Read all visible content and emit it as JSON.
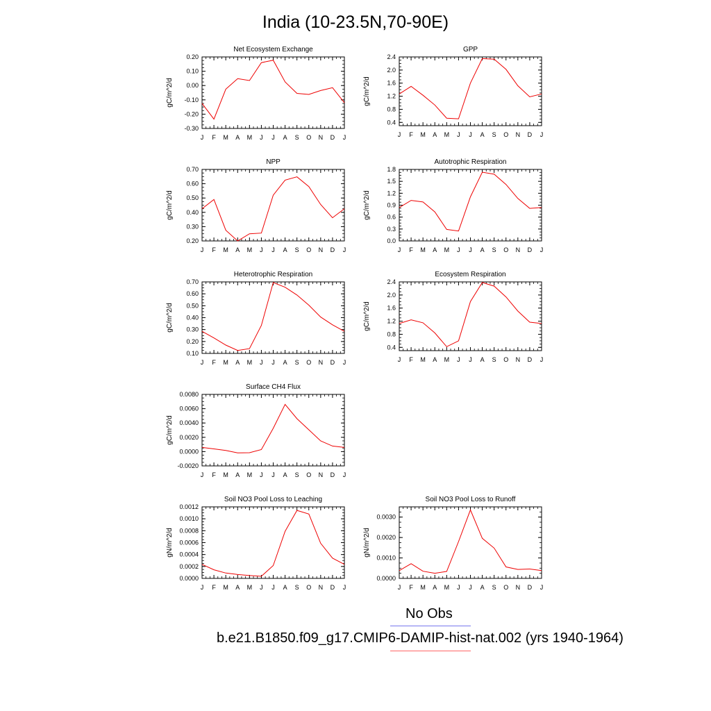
{
  "page": {
    "title": "India (10-23.5N,70-90E)"
  },
  "legend": {
    "obs_label": "No Obs",
    "obs_color": "#7777ee",
    "model_label": "b.e21.B1850.f09_g17.CMIP6-DAMIP-hist-nat.002 (yrs 1940-1964)",
    "model_color": "#ff6666"
  },
  "line_color": "#ee0000",
  "chart_data": [
    {
      "type": "line",
      "title": "Net Ecosystem Exchange",
      "ylabel": "gC/m^2/d",
      "x": [
        "J",
        "F",
        "M",
        "A",
        "M",
        "J",
        "J",
        "A",
        "S",
        "O",
        "N",
        "D",
        "J"
      ],
      "ylim": [
        -0.3,
        0.2
      ],
      "yticks": [
        "0.20",
        "0.10",
        "0.00",
        "-0.10",
        "-0.20",
        "-0.30"
      ],
      "ytick_values": [
        0.2,
        0.1,
        0.0,
        -0.1,
        -0.2,
        -0.3
      ],
      "values": [
        -0.125,
        -0.235,
        -0.025,
        0.048,
        0.035,
        0.16,
        0.177,
        0.025,
        -0.055,
        -0.062,
        -0.035,
        -0.015,
        -0.12
      ]
    },
    {
      "type": "line",
      "title": "GPP",
      "ylabel": "gC/m^2/d",
      "x": [
        "J",
        "F",
        "M",
        "A",
        "M",
        "J",
        "J",
        "A",
        "S",
        "O",
        "N",
        "D",
        "J"
      ],
      "ylim": [
        0.3,
        2.4
      ],
      "yticks": [
        "2.4",
        "2.0",
        "1.6",
        "1.2",
        "0.8",
        "0.4"
      ],
      "ytick_values": [
        2.4,
        2.0,
        1.6,
        1.2,
        0.8,
        0.4
      ],
      "values": [
        1.27,
        1.5,
        1.23,
        0.93,
        0.53,
        0.51,
        1.6,
        2.35,
        2.33,
        2.02,
        1.52,
        1.18,
        1.27
      ]
    },
    {
      "type": "line",
      "title": "NPP",
      "ylabel": "gC/m^2/d",
      "x": [
        "J",
        "F",
        "M",
        "A",
        "M",
        "J",
        "J",
        "A",
        "S",
        "O",
        "N",
        "D",
        "J"
      ],
      "ylim": [
        0.2,
        0.7
      ],
      "yticks": [
        "0.70",
        "0.60",
        "0.50",
        "0.40",
        "0.30",
        "0.20"
      ],
      "ytick_values": [
        0.7,
        0.6,
        0.5,
        0.4,
        0.3,
        0.2
      ],
      "values": [
        0.425,
        0.49,
        0.275,
        0.2,
        0.25,
        0.255,
        0.52,
        0.625,
        0.648,
        0.58,
        0.455,
        0.362,
        0.425
      ]
    },
    {
      "type": "line",
      "title": "Autotrophic Respiration",
      "ylabel": "gC/m^2/d",
      "x": [
        "J",
        "F",
        "M",
        "A",
        "M",
        "J",
        "J",
        "A",
        "S",
        "O",
        "N",
        "D",
        "J"
      ],
      "ylim": [
        0.0,
        1.8
      ],
      "yticks": [
        "1.8",
        "1.5",
        "1.2",
        "0.9",
        "0.6",
        "0.3",
        "0.0"
      ],
      "ytick_values": [
        1.8,
        1.5,
        1.2,
        0.9,
        0.6,
        0.3,
        0.0
      ],
      "values": [
        0.84,
        1.02,
        0.98,
        0.73,
        0.29,
        0.25,
        1.11,
        1.73,
        1.68,
        1.42,
        1.07,
        0.82,
        0.84
      ]
    },
    {
      "type": "line",
      "title": "Heterotrophic Respiration",
      "ylabel": "gC/m^2/d",
      "x": [
        "J",
        "F",
        "M",
        "A",
        "M",
        "J",
        "J",
        "A",
        "S",
        "O",
        "N",
        "D",
        "J"
      ],
      "ylim": [
        0.1,
        0.7
      ],
      "yticks": [
        "0.70",
        "0.60",
        "0.50",
        "0.40",
        "0.30",
        "0.20",
        "0.10"
      ],
      "ytick_values": [
        0.7,
        0.6,
        0.5,
        0.4,
        0.3,
        0.2,
        0.1
      ],
      "values": [
        0.285,
        0.23,
        0.17,
        0.125,
        0.14,
        0.335,
        0.695,
        0.655,
        0.59,
        0.505,
        0.405,
        0.34,
        0.285
      ]
    },
    {
      "type": "line",
      "title": "Ecosystem Respiration",
      "ylabel": "gC/m^2/d",
      "x": [
        "J",
        "F",
        "M",
        "A",
        "M",
        "J",
        "J",
        "A",
        "S",
        "O",
        "N",
        "D",
        "J"
      ],
      "ylim": [
        0.3,
        2.4
      ],
      "yticks": [
        "2.4",
        "2.0",
        "1.6",
        "1.2",
        "0.8",
        "0.4"
      ],
      "ytick_values": [
        2.4,
        2.0,
        1.6,
        1.2,
        0.8,
        0.4
      ],
      "values": [
        1.13,
        1.24,
        1.15,
        0.84,
        0.42,
        0.6,
        1.8,
        2.38,
        2.27,
        1.94,
        1.51,
        1.17,
        1.13
      ]
    },
    {
      "type": "line",
      "title": "Surface CH4 Flux",
      "ylabel": "gC/m^2/d",
      "x": [
        "J",
        "F",
        "M",
        "A",
        "M",
        "J",
        "J",
        "A",
        "S",
        "O",
        "N",
        "D",
        "J"
      ],
      "ylim": [
        -0.002,
        0.008
      ],
      "yticks": [
        "0.0080",
        "0.0060",
        "0.0040",
        "0.0020",
        "0.0000",
        "-0.0020"
      ],
      "ytick_values": [
        0.008,
        0.006,
        0.004,
        0.002,
        0.0,
        -0.002
      ],
      "values": [
        0.00058,
        0.00038,
        0.00016,
        -0.00018,
        -0.00016,
        0.00028,
        0.00325,
        0.0066,
        0.0046,
        0.00305,
        0.0015,
        0.00078,
        0.00058
      ]
    },
    {
      "type": "line",
      "title": "Soil NO3 Pool Loss to Leaching",
      "ylabel": "gN/m^2/d",
      "x": [
        "J",
        "F",
        "M",
        "A",
        "M",
        "J",
        "J",
        "A",
        "S",
        "O",
        "N",
        "D",
        "J"
      ],
      "ylim": [
        0.0,
        0.0012
      ],
      "yticks": [
        "0.0012",
        "0.0010",
        "0.0008",
        "0.0006",
        "0.0004",
        "0.0002",
        "0.0000"
      ],
      "ytick_values": [
        0.0012,
        0.001,
        0.0008,
        0.0006,
        0.0004,
        0.0002,
        0.0
      ],
      "values": [
        0.000235,
        0.000145,
        9e-05,
        6.5e-05,
        4.8e-05,
        3.5e-05,
        0.000215,
        0.00079,
        0.00114,
        0.00108,
        0.00059,
        0.00034,
        0.000235
      ]
    },
    {
      "type": "line",
      "title": "Soil NO3 Pool Loss to Runoff",
      "ylabel": "gN/m^2/d",
      "x": [
        "J",
        "F",
        "M",
        "A",
        "M",
        "J",
        "J",
        "A",
        "S",
        "O",
        "N",
        "D",
        "J"
      ],
      "ylim": [
        0.0,
        0.0035
      ],
      "yticks": [
        "0.0030",
        "0.0020",
        "0.0010",
        "0.0000"
      ],
      "ytick_values": [
        0.003,
        0.002,
        0.001,
        0.0
      ],
      "values": [
        0.00038,
        0.00072,
        0.00035,
        0.00025,
        0.00034,
        0.0018,
        0.00335,
        0.00196,
        0.00148,
        0.00056,
        0.00044,
        0.00046,
        0.00038
      ]
    }
  ]
}
